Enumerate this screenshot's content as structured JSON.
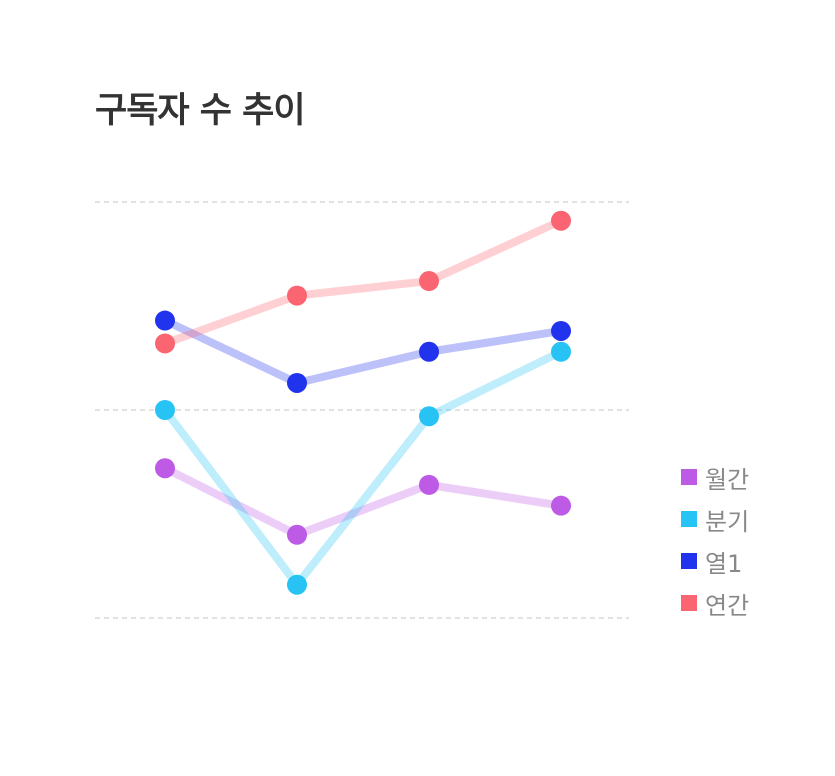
{
  "chart_data": {
    "type": "line",
    "title": "구독자 수 추이",
    "categories": [
      "",
      "",
      "",
      ""
    ],
    "ylim": [
      0,
      100
    ],
    "grid": true,
    "legend_position": "right",
    "series": [
      {
        "name": "월간",
        "color": "#bd5ae6",
        "values": [
          36,
          20,
          32,
          27
        ]
      },
      {
        "name": "분기",
        "color": "#27c3f5",
        "values": [
          50,
          8,
          48.5,
          64
        ]
      },
      {
        "name": "열1",
        "color": "#2233ee",
        "values": [
          71.5,
          56.5,
          64,
          69
        ]
      },
      {
        "name": "연간",
        "color": "#fb6471",
        "values": [
          66,
          77.5,
          81,
          95.5
        ]
      }
    ]
  }
}
